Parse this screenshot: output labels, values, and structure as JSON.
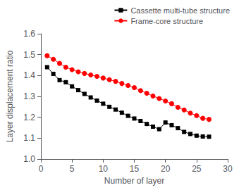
{
  "chart_data": {
    "type": "line",
    "title": "",
    "xlabel": "Number of layer",
    "ylabel": "Layer displacement ratio",
    "x": [
      1,
      2,
      3,
      4,
      5,
      6,
      7,
      8,
      9,
      10,
      11,
      12,
      13,
      14,
      15,
      16,
      17,
      18,
      19,
      20,
      21,
      22,
      23,
      24,
      25,
      26,
      27
    ],
    "series": [
      {
        "name": "Cassette multi-tube structure",
        "color": "#000000",
        "marker": "square",
        "values": [
          1.44,
          1.408,
          1.378,
          1.368,
          1.348,
          1.33,
          1.312,
          1.295,
          1.28,
          1.265,
          1.25,
          1.237,
          1.222,
          1.207,
          1.194,
          1.182,
          1.168,
          1.155,
          1.143,
          1.175,
          1.162,
          1.148,
          1.13,
          1.12,
          1.112,
          1.108,
          1.107
        ]
      },
      {
        "name": "Frame-core structure",
        "color": "#ff0000",
        "marker": "circle",
        "values": [
          1.495,
          1.478,
          1.458,
          1.44,
          1.428,
          1.418,
          1.41,
          1.403,
          1.396,
          1.388,
          1.38,
          1.372,
          1.362,
          1.352,
          1.342,
          1.328,
          1.315,
          1.302,
          1.29,
          1.278,
          1.265,
          1.248,
          1.235,
          1.22,
          1.208,
          1.195,
          1.19
        ]
      }
    ],
    "xlim": [
      0,
      30
    ],
    "xticks": [
      0,
      5,
      10,
      15,
      20,
      25,
      30
    ],
    "ylim": [
      1.0,
      1.6
    ],
    "yticks": [
      {
        "value": 1.0,
        "label": "1.0"
      },
      1.1,
      1.2,
      1.3,
      1.4,
      1.5,
      1.6
    ],
    "grid": false,
    "legend": "upper right"
  }
}
